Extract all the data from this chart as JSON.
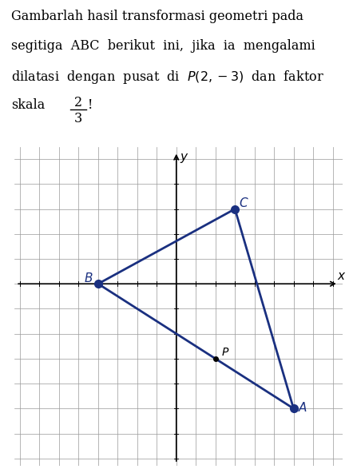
{
  "title_lines": [
    "Gambarlah hasil transformasi geometri pada",
    "segitiga  ABC  berikut  ini,  jika  ia  mengalami",
    "dilatasi  dengan  pusat  di  P(2,-3)  dan  faktor",
    "skala"
  ],
  "A": [
    6,
    -5
  ],
  "B": [
    -4,
    0
  ],
  "C": [
    3,
    3
  ],
  "P": [
    2,
    -3
  ],
  "xmin": -8,
  "xmax": 8,
  "ymin": -7,
  "ymax": 5,
  "grid_color": "#999999",
  "triangle_color": "#1a3080",
  "axis_color": "#000000",
  "background_color": "#ffffff",
  "point_size": 7,
  "linewidth": 2.0,
  "text_fontsize": 11.5
}
